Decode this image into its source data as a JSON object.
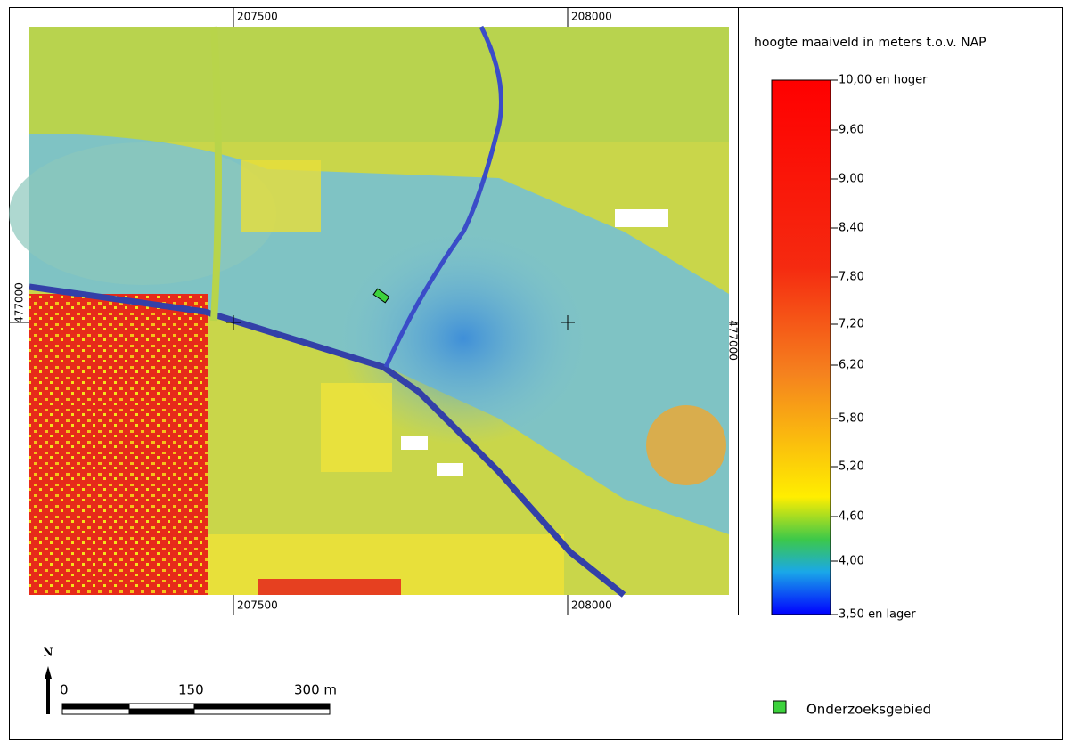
{
  "map": {
    "top_coords": [
      "207500",
      "208000"
    ],
    "bottom_coords": [
      "207500",
      "208000"
    ],
    "left_coord": "477000",
    "right_coord": "477000"
  },
  "legend": {
    "title": "hoogte maaiveld in meters t.o.v. NAP",
    "labels": [
      "10,00 en hoger",
      "9,60",
      "9,00",
      "8,40",
      "7,80",
      "7,20",
      "6,20",
      "5,80",
      "5,20",
      "4,60",
      "4,00",
      "3,50 en lager"
    ],
    "item": "Onderzoeksgebied"
  },
  "scale_bar": {
    "north": "N",
    "labels": [
      "0",
      "150",
      "300 m"
    ]
  }
}
